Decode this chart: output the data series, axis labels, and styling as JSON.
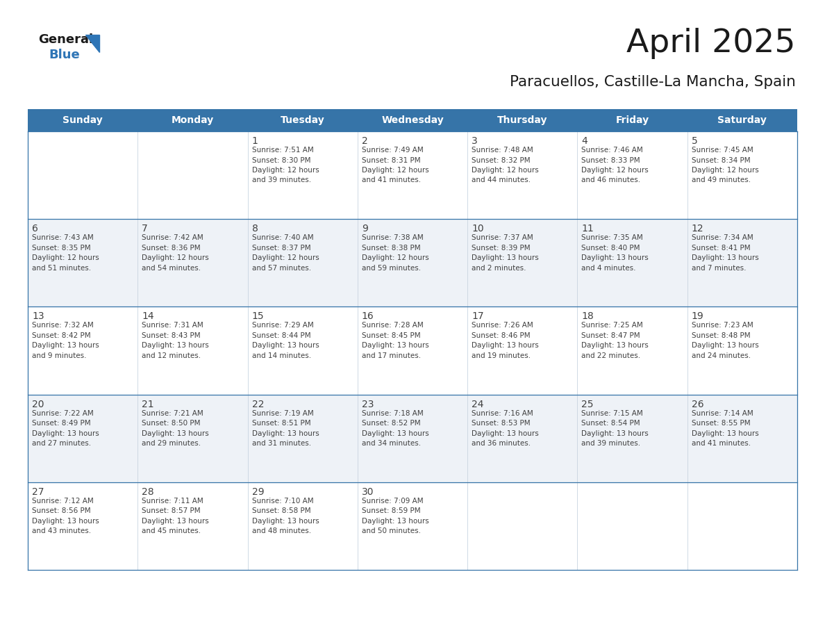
{
  "title": "April 2025",
  "subtitle": "Paracuellos, Castille-La Mancha, Spain",
  "days_of_week": [
    "Sunday",
    "Monday",
    "Tuesday",
    "Wednesday",
    "Thursday",
    "Friday",
    "Saturday"
  ],
  "header_bg": "#3674a8",
  "header_text": "#FFFFFF",
  "row_bg_odd": "#FFFFFF",
  "row_bg_even": "#eef2f7",
  "line_color": "#3674a8",
  "col_line_color": "#c8d4e0",
  "text_color": "#404040",
  "title_color": "#1a1a1a",
  "logo_general_color": "#1a1a1a",
  "logo_blue_color": "#2E75B6",
  "logo_triangle_color": "#2E75B6",
  "calendar_data": [
    [
      {
        "day": "",
        "info": ""
      },
      {
        "day": "",
        "info": ""
      },
      {
        "day": "1",
        "info": "Sunrise: 7:51 AM\nSunset: 8:30 PM\nDaylight: 12 hours\nand 39 minutes."
      },
      {
        "day": "2",
        "info": "Sunrise: 7:49 AM\nSunset: 8:31 PM\nDaylight: 12 hours\nand 41 minutes."
      },
      {
        "day": "3",
        "info": "Sunrise: 7:48 AM\nSunset: 8:32 PM\nDaylight: 12 hours\nand 44 minutes."
      },
      {
        "day": "4",
        "info": "Sunrise: 7:46 AM\nSunset: 8:33 PM\nDaylight: 12 hours\nand 46 minutes."
      },
      {
        "day": "5",
        "info": "Sunrise: 7:45 AM\nSunset: 8:34 PM\nDaylight: 12 hours\nand 49 minutes."
      }
    ],
    [
      {
        "day": "6",
        "info": "Sunrise: 7:43 AM\nSunset: 8:35 PM\nDaylight: 12 hours\nand 51 minutes."
      },
      {
        "day": "7",
        "info": "Sunrise: 7:42 AM\nSunset: 8:36 PM\nDaylight: 12 hours\nand 54 minutes."
      },
      {
        "day": "8",
        "info": "Sunrise: 7:40 AM\nSunset: 8:37 PM\nDaylight: 12 hours\nand 57 minutes."
      },
      {
        "day": "9",
        "info": "Sunrise: 7:38 AM\nSunset: 8:38 PM\nDaylight: 12 hours\nand 59 minutes."
      },
      {
        "day": "10",
        "info": "Sunrise: 7:37 AM\nSunset: 8:39 PM\nDaylight: 13 hours\nand 2 minutes."
      },
      {
        "day": "11",
        "info": "Sunrise: 7:35 AM\nSunset: 8:40 PM\nDaylight: 13 hours\nand 4 minutes."
      },
      {
        "day": "12",
        "info": "Sunrise: 7:34 AM\nSunset: 8:41 PM\nDaylight: 13 hours\nand 7 minutes."
      }
    ],
    [
      {
        "day": "13",
        "info": "Sunrise: 7:32 AM\nSunset: 8:42 PM\nDaylight: 13 hours\nand 9 minutes."
      },
      {
        "day": "14",
        "info": "Sunrise: 7:31 AM\nSunset: 8:43 PM\nDaylight: 13 hours\nand 12 minutes."
      },
      {
        "day": "15",
        "info": "Sunrise: 7:29 AM\nSunset: 8:44 PM\nDaylight: 13 hours\nand 14 minutes."
      },
      {
        "day": "16",
        "info": "Sunrise: 7:28 AM\nSunset: 8:45 PM\nDaylight: 13 hours\nand 17 minutes."
      },
      {
        "day": "17",
        "info": "Sunrise: 7:26 AM\nSunset: 8:46 PM\nDaylight: 13 hours\nand 19 minutes."
      },
      {
        "day": "18",
        "info": "Sunrise: 7:25 AM\nSunset: 8:47 PM\nDaylight: 13 hours\nand 22 minutes."
      },
      {
        "day": "19",
        "info": "Sunrise: 7:23 AM\nSunset: 8:48 PM\nDaylight: 13 hours\nand 24 minutes."
      }
    ],
    [
      {
        "day": "20",
        "info": "Sunrise: 7:22 AM\nSunset: 8:49 PM\nDaylight: 13 hours\nand 27 minutes."
      },
      {
        "day": "21",
        "info": "Sunrise: 7:21 AM\nSunset: 8:50 PM\nDaylight: 13 hours\nand 29 minutes."
      },
      {
        "day": "22",
        "info": "Sunrise: 7:19 AM\nSunset: 8:51 PM\nDaylight: 13 hours\nand 31 minutes."
      },
      {
        "day": "23",
        "info": "Sunrise: 7:18 AM\nSunset: 8:52 PM\nDaylight: 13 hours\nand 34 minutes."
      },
      {
        "day": "24",
        "info": "Sunrise: 7:16 AM\nSunset: 8:53 PM\nDaylight: 13 hours\nand 36 minutes."
      },
      {
        "day": "25",
        "info": "Sunrise: 7:15 AM\nSunset: 8:54 PM\nDaylight: 13 hours\nand 39 minutes."
      },
      {
        "day": "26",
        "info": "Sunrise: 7:14 AM\nSunset: 8:55 PM\nDaylight: 13 hours\nand 41 minutes."
      }
    ],
    [
      {
        "day": "27",
        "info": "Sunrise: 7:12 AM\nSunset: 8:56 PM\nDaylight: 13 hours\nand 43 minutes."
      },
      {
        "day": "28",
        "info": "Sunrise: 7:11 AM\nSunset: 8:57 PM\nDaylight: 13 hours\nand 45 minutes."
      },
      {
        "day": "29",
        "info": "Sunrise: 7:10 AM\nSunset: 8:58 PM\nDaylight: 13 hours\nand 48 minutes."
      },
      {
        "day": "30",
        "info": "Sunrise: 7:09 AM\nSunset: 8:59 PM\nDaylight: 13 hours\nand 50 minutes."
      },
      {
        "day": "",
        "info": ""
      },
      {
        "day": "",
        "info": ""
      },
      {
        "day": "",
        "info": ""
      }
    ]
  ]
}
